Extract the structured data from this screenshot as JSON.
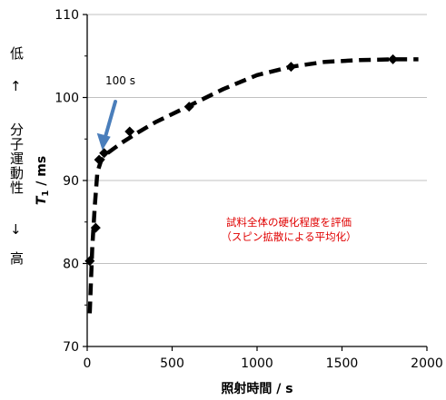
{
  "side_labels": {
    "low": "低",
    "up_arrow": "↑",
    "middle": "分子運動性",
    "down_arrow": "↓",
    "high": "高"
  },
  "annotations": {
    "time_label": "100 s",
    "note_line1": "試料全体の硬化程度を評価",
    "note_line2": "（スピン拡散による平均化）"
  },
  "colors": {
    "marker": "#000000",
    "fit_line": "#000000",
    "grid": "#c0c0c0",
    "arrow": "#4a7ebb",
    "note": "#e00000"
  },
  "chart_data": {
    "type": "scatter",
    "xlabel": "照射時間 / s",
    "ylabel": "T1 / ms",
    "ylabel_main": "T",
    "ylabel_sub": "1",
    "ylabel_rest": " / ms",
    "xlim": [
      0,
      2000
    ],
    "ylim": [
      70,
      110
    ],
    "xticks": [
      0,
      500,
      1000,
      1500,
      2000
    ],
    "yticks": [
      70,
      80,
      90,
      100,
      110
    ],
    "grid": "horizontal",
    "series": [
      {
        "marker": "diamond",
        "points": [
          {
            "x": 15,
            "y": 80.3
          },
          {
            "x": 50,
            "y": 84.3
          },
          {
            "x": 70,
            "y": 92.5
          },
          {
            "x": 100,
            "y": 93.3
          },
          {
            "x": 250,
            "y": 95.9
          },
          {
            "x": 600,
            "y": 98.9
          },
          {
            "x": 1200,
            "y": 103.7
          },
          {
            "x": 1800,
            "y": 104.6
          }
        ]
      }
    ],
    "fit_curve": [
      {
        "x": 15,
        "y": 74.0
      },
      {
        "x": 30,
        "y": 82.0
      },
      {
        "x": 45,
        "y": 87.0
      },
      {
        "x": 60,
        "y": 91.0
      },
      {
        "x": 80,
        "y": 92.3
      },
      {
        "x": 120,
        "y": 93.3
      },
      {
        "x": 200,
        "y": 94.5
      },
      {
        "x": 300,
        "y": 95.8
      },
      {
        "x": 400,
        "y": 97.0
      },
      {
        "x": 600,
        "y": 99.0
      },
      {
        "x": 800,
        "y": 101.0
      },
      {
        "x": 1000,
        "y": 102.7
      },
      {
        "x": 1200,
        "y": 103.7
      },
      {
        "x": 1400,
        "y": 104.3
      },
      {
        "x": 1600,
        "y": 104.5
      },
      {
        "x": 1800,
        "y": 104.6
      },
      {
        "x": 1950,
        "y": 104.6
      }
    ]
  }
}
